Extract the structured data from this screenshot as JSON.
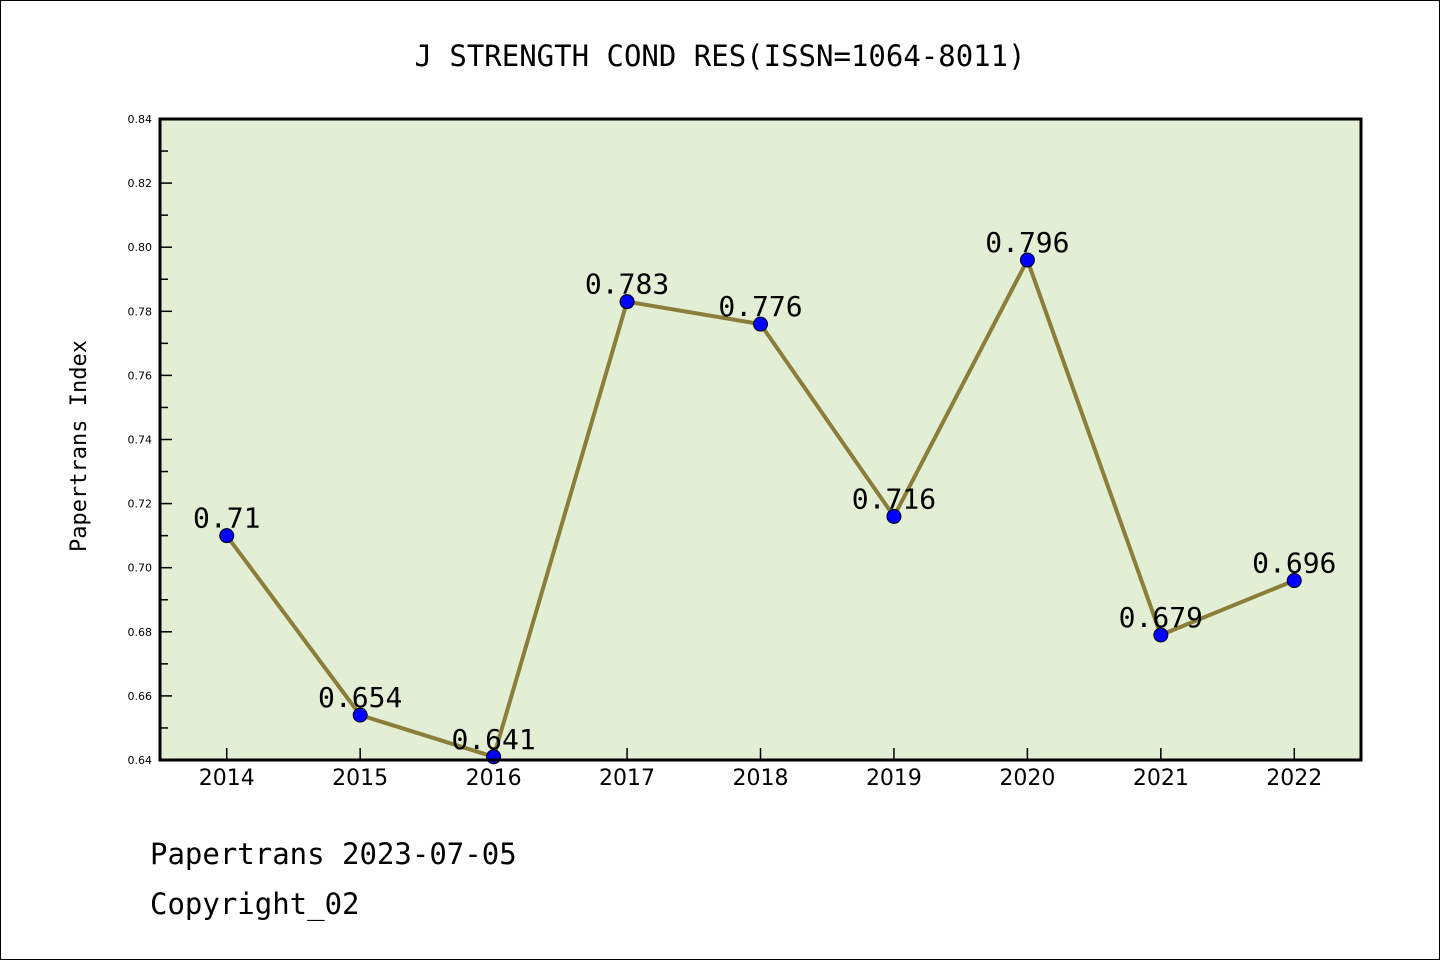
{
  "chart_data": {
    "type": "line",
    "title": "J STRENGTH COND RES(ISSN=1064-8011)",
    "xlabel": "",
    "ylabel": "Papertrans Index",
    "categories": [
      "2014",
      "2015",
      "2016",
      "2017",
      "2018",
      "2019",
      "2020",
      "2021",
      "2022"
    ],
    "values": [
      0.71,
      0.654,
      0.641,
      0.783,
      0.776,
      0.716,
      0.796,
      0.679,
      0.696
    ],
    "data_labels": [
      "0.71",
      "0.654",
      "0.641",
      "0.783",
      "0.776",
      "0.716",
      "0.796",
      "0.679",
      "0.696"
    ],
    "ylim": [
      0.64,
      0.84
    ],
    "yticks": [
      "0.64",
      "0.66",
      "0.68",
      "0.70",
      "0.72",
      "0.74",
      "0.76",
      "0.78",
      "0.80",
      "0.82",
      "0.84"
    ],
    "grid": false,
    "colors": {
      "line": "#8b7d3a",
      "marker": "#0000ff",
      "background": "#e2efd5"
    }
  },
  "footer": {
    "line1": "Papertrans 2023-07-05",
    "line2": "Copyright_02"
  }
}
